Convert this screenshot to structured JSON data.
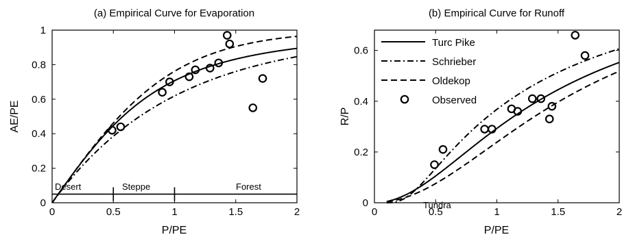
{
  "chart_data": [
    {
      "type": "line",
      "title": "(a) Empirical Curve for Evaporation",
      "xlabel": "P/PE",
      "ylabel": "AE/PE",
      "xlim": [
        0,
        2
      ],
      "ylim": [
        0,
        1
      ],
      "xticks": [
        "0",
        "0.5",
        "1",
        "1.5",
        "2"
      ],
      "yticks": [
        "0",
        "0.2",
        "0.4",
        "0.6",
        "0.8",
        "1"
      ],
      "region_labels": [
        "Desert",
        "Steppe",
        "Forest"
      ],
      "region_line_y": 0.05,
      "region_dividers_x": [
        0.5,
        1.0
      ],
      "series": [
        {
          "name": "Turc Pike",
          "style": "solid",
          "formula": "turc_ae"
        },
        {
          "name": "Schrieber",
          "style": "dashdot",
          "formula": "schreiber_ae"
        },
        {
          "name": "Oldekop",
          "style": "dashed",
          "formula": "oldekop_ae"
        },
        {
          "name": "Observed",
          "style": "marker",
          "x": [
            0.49,
            0.56,
            0.9,
            0.96,
            1.12,
            1.17,
            1.29,
            1.36,
            1.43,
            1.45,
            1.64,
            1.72
          ],
          "y": [
            0.42,
            0.44,
            0.64,
            0.7,
            0.73,
            0.77,
            0.78,
            0.81,
            0.97,
            0.92,
            0.55,
            0.72
          ]
        }
      ]
    },
    {
      "type": "line",
      "title": "(b) Empirical Curve for Runoff",
      "xlabel": "P/PE",
      "ylabel": "R/P",
      "xlim": [
        0,
        2
      ],
      "ylim": [
        0,
        0.68
      ],
      "xticks": [
        "0",
        "0.5",
        "1",
        "1.5",
        "2"
      ],
      "yticks": [
        "0",
        "0.2",
        "0.4",
        "0.6"
      ],
      "region_labels": [
        "Tundra"
      ],
      "legend_position": "top-left",
      "series": [
        {
          "name": "Turc Pike",
          "style": "solid",
          "formula": "turc_r"
        },
        {
          "name": "Schrieber",
          "style": "dashdot",
          "formula": "schreiber_r"
        },
        {
          "name": "Oldekop",
          "style": "dashed",
          "formula": "oldekop_r"
        },
        {
          "name": "Observed",
          "style": "marker",
          "x": [
            0.49,
            0.56,
            0.9,
            0.96,
            1.12,
            1.17,
            1.29,
            1.36,
            1.43,
            1.45,
            1.64,
            1.72
          ],
          "y": [
            0.15,
            0.21,
            0.29,
            0.29,
            0.37,
            0.36,
            0.41,
            0.41,
            0.33,
            0.38,
            0.66,
            0.58
          ]
        }
      ]
    }
  ]
}
